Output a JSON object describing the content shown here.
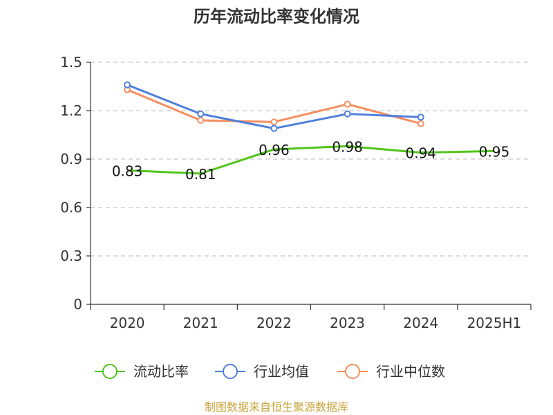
{
  "chart_data": {
    "type": "line",
    "title": "历年流动比率变化情况",
    "categories": [
      "2020",
      "2021",
      "2022",
      "2023",
      "2024",
      "2025H1"
    ],
    "y_ticks": [
      "0",
      "0.3",
      "0.6",
      "0.9",
      "1.2",
      "1.5"
    ],
    "ylim": [
      0,
      1.5
    ],
    "grid": "horizontal dashed",
    "legend_position": "bottom",
    "series": [
      {
        "name": "流动比率",
        "color": "#52c41a",
        "values": [
          0.83,
          0.81,
          0.96,
          0.98,
          0.94,
          0.95
        ],
        "labels": [
          "0.83",
          "0.81",
          "0.96",
          "0.98",
          "0.94",
          "0.95"
        ]
      },
      {
        "name": "行业均值",
        "color": "#4e7fdc",
        "values": [
          1.36,
          1.18,
          1.09,
          1.18,
          1.16,
          null
        ]
      },
      {
        "name": "行业中位数",
        "color": "#f68e5f",
        "values": [
          1.33,
          1.14,
          1.13,
          1.24,
          1.12,
          null
        ]
      }
    ]
  },
  "source": "制图数据来自恒生聚源数据库"
}
